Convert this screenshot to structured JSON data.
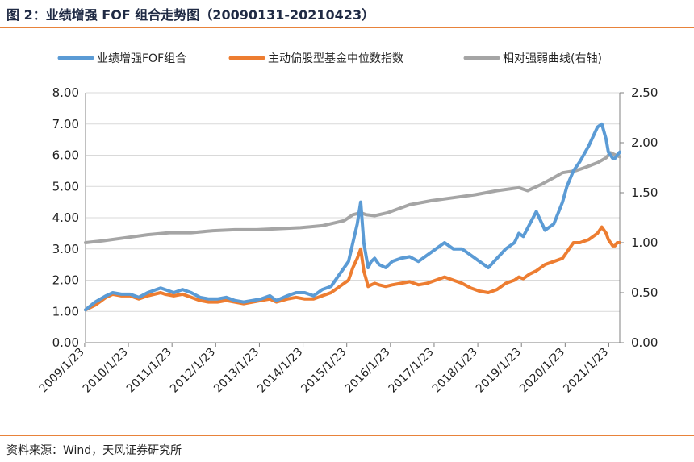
{
  "figure": {
    "title": "图 2：业绩增强 FOF 组合走势图（20090131-20210423）",
    "source": "资料来源：Wind，天风证券研究所"
  },
  "colors": {
    "fof": "#5b9bd5",
    "index": "#ed7d31",
    "ratio": "#a5a5a5",
    "accent": "#e8823a",
    "grid": "#d9d9d9"
  },
  "chart_data": {
    "type": "line",
    "title": "",
    "legend": {
      "placement": "top",
      "entries": [
        "业绩增强FOF组合",
        "主动偏股型基金中位数指数",
        "相对强弱曲线(右轴)"
      ]
    },
    "x_ticks": [
      "2009/1/23",
      "2010/1/23",
      "2011/1/23",
      "2012/1/23",
      "2013/1/23",
      "2014/1/23",
      "2015/1/23",
      "2016/1/23",
      "2017/1/23",
      "2018/1/23",
      "2019/1/23",
      "2020/1/23",
      "2021/1/23"
    ],
    "xlim": [
      2009.08,
      2021.31
    ],
    "y_left": {
      "lim": [
        0,
        8
      ],
      "ticks": [
        "0.00",
        "1.00",
        "2.00",
        "3.00",
        "4.00",
        "5.00",
        "6.00",
        "7.00",
        "8.00"
      ]
    },
    "y_right": {
      "lim": [
        0,
        2.5
      ],
      "ticks": [
        "0.00",
        "0.50",
        "1.00",
        "1.50",
        "2.00",
        "2.50"
      ]
    },
    "grid": true,
    "series": [
      {
        "name": "业绩增强FOF组合",
        "axis": "left",
        "x": [
          2009.08,
          2009.3,
          2009.55,
          2009.7,
          2009.9,
          2010.1,
          2010.3,
          2010.5,
          2010.8,
          2010.9,
          2011.1,
          2011.3,
          2011.5,
          2011.7,
          2011.9,
          2012.1,
          2012.3,
          2012.5,
          2012.7,
          2012.9,
          2013.1,
          2013.3,
          2013.45,
          2013.7,
          2013.9,
          2014.1,
          2014.3,
          2014.5,
          2014.7,
          2014.9,
          2015.1,
          2015.2,
          2015.3,
          2015.38,
          2015.45,
          2015.55,
          2015.62,
          2015.7,
          2015.8,
          2015.95,
          2016.1,
          2016.3,
          2016.5,
          2016.7,
          2016.9,
          2017.1,
          2017.3,
          2017.5,
          2017.7,
          2017.9,
          2018.1,
          2018.3,
          2018.5,
          2018.7,
          2018.9,
          2019.0,
          2019.1,
          2019.25,
          2019.4,
          2019.6,
          2019.8,
          2020.0,
          2020.1,
          2020.25,
          2020.4,
          2020.6,
          2020.8,
          2020.9,
          2021.0,
          2021.05,
          2021.1,
          2021.15,
          2021.2,
          2021.25,
          2021.31
        ],
        "y": [
          1.05,
          1.3,
          1.5,
          1.6,
          1.55,
          1.55,
          1.45,
          1.6,
          1.75,
          1.7,
          1.6,
          1.7,
          1.6,
          1.45,
          1.4,
          1.4,
          1.45,
          1.35,
          1.3,
          1.35,
          1.4,
          1.5,
          1.35,
          1.5,
          1.6,
          1.6,
          1.5,
          1.7,
          1.8,
          2.2,
          2.6,
          3.2,
          3.8,
          4.5,
          3.2,
          2.4,
          2.6,
          2.7,
          2.5,
          2.4,
          2.6,
          2.7,
          2.75,
          2.6,
          2.8,
          3.0,
          3.2,
          3.0,
          3.0,
          2.8,
          2.6,
          2.4,
          2.7,
          3.0,
          3.2,
          3.5,
          3.4,
          3.8,
          4.2,
          3.6,
          3.8,
          4.5,
          5.0,
          5.5,
          5.8,
          6.3,
          6.9,
          7.0,
          6.5,
          6.1,
          6.0,
          5.9,
          5.9,
          6.0,
          6.1
        ]
      },
      {
        "name": "主动偏股型基金中位数指数",
        "axis": "left",
        "x": [
          2009.08,
          2009.3,
          2009.55,
          2009.7,
          2009.9,
          2010.1,
          2010.3,
          2010.5,
          2010.8,
          2010.9,
          2011.1,
          2011.3,
          2011.5,
          2011.7,
          2011.9,
          2012.1,
          2012.3,
          2012.5,
          2012.7,
          2012.9,
          2013.1,
          2013.3,
          2013.45,
          2013.7,
          2013.9,
          2014.1,
          2014.3,
          2014.5,
          2014.7,
          2014.9,
          2015.1,
          2015.2,
          2015.3,
          2015.38,
          2015.45,
          2015.55,
          2015.62,
          2015.7,
          2015.8,
          2015.95,
          2016.1,
          2016.3,
          2016.5,
          2016.7,
          2016.9,
          2017.1,
          2017.3,
          2017.5,
          2017.7,
          2017.9,
          2018.1,
          2018.3,
          2018.5,
          2018.7,
          2018.9,
          2019.0,
          2019.1,
          2019.25,
          2019.4,
          2019.6,
          2019.8,
          2020.0,
          2020.1,
          2020.25,
          2020.4,
          2020.6,
          2020.8,
          2020.9,
          2021.0,
          2021.05,
          2021.1,
          2021.15,
          2021.2,
          2021.25,
          2021.31
        ],
        "y": [
          1.05,
          1.2,
          1.45,
          1.55,
          1.5,
          1.5,
          1.4,
          1.5,
          1.6,
          1.55,
          1.5,
          1.55,
          1.45,
          1.35,
          1.3,
          1.3,
          1.35,
          1.3,
          1.25,
          1.3,
          1.35,
          1.4,
          1.3,
          1.4,
          1.45,
          1.4,
          1.4,
          1.5,
          1.6,
          1.8,
          2.0,
          2.4,
          2.7,
          3.0,
          2.3,
          1.8,
          1.85,
          1.9,
          1.85,
          1.8,
          1.85,
          1.9,
          1.95,
          1.85,
          1.9,
          2.0,
          2.1,
          2.0,
          1.9,
          1.75,
          1.65,
          1.6,
          1.7,
          1.9,
          2.0,
          2.1,
          2.05,
          2.2,
          2.3,
          2.5,
          2.6,
          2.7,
          2.9,
          3.2,
          3.2,
          3.3,
          3.5,
          3.7,
          3.5,
          3.3,
          3.2,
          3.1,
          3.1,
          3.2,
          3.2
        ]
      },
      {
        "name": "相对强弱曲线(右轴)",
        "axis": "right",
        "x": [
          2009.08,
          2009.5,
          2010.0,
          2010.5,
          2011.0,
          2011.5,
          2012.0,
          2012.5,
          2013.0,
          2013.5,
          2014.0,
          2014.5,
          2015.0,
          2015.2,
          2015.38,
          2015.5,
          2015.7,
          2016.0,
          2016.5,
          2017.0,
          2017.5,
          2018.0,
          2018.5,
          2019.0,
          2019.2,
          2019.5,
          2019.8,
          2020.0,
          2020.3,
          2020.5,
          2020.8,
          2021.0,
          2021.1,
          2021.2,
          2021.31
        ],
        "y": [
          1.0,
          1.02,
          1.05,
          1.08,
          1.1,
          1.1,
          1.12,
          1.13,
          1.13,
          1.14,
          1.15,
          1.17,
          1.22,
          1.28,
          1.3,
          1.28,
          1.27,
          1.3,
          1.38,
          1.42,
          1.45,
          1.48,
          1.52,
          1.55,
          1.52,
          1.58,
          1.65,
          1.7,
          1.72,
          1.75,
          1.8,
          1.85,
          1.9,
          1.88,
          1.86
        ]
      }
    ]
  }
}
